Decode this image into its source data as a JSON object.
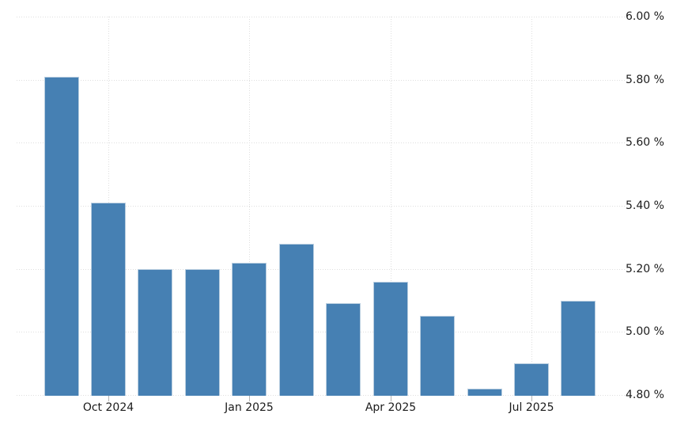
{
  "chart_data": {
    "type": "bar",
    "title": "",
    "xlabel": "",
    "ylabel": "",
    "unit": "%",
    "categories": [
      "Sep 2024",
      "Oct 2024",
      "Nov 2024",
      "Dec 2024",
      "Jan 2025",
      "Feb 2025",
      "Mar 2025",
      "Apr 2025",
      "May 2025",
      "Jun 2025",
      "Jul 2025",
      "Aug 2025"
    ],
    "values": [
      5.81,
      5.41,
      5.2,
      5.2,
      5.22,
      5.28,
      5.09,
      5.16,
      5.05,
      4.82,
      4.9,
      5.1
    ],
    "ylim": [
      4.8,
      6.0
    ],
    "y_ticks": [
      6.0,
      5.8,
      5.6,
      5.4,
      5.2,
      5.0,
      4.8
    ],
    "y_tick_labels": [
      "6.00 %",
      "5.80 %",
      "5.60 %",
      "5.40 %",
      "5.20 %",
      "5.00 %",
      "4.80 %"
    ],
    "x_ticks": [
      {
        "index": 1,
        "label": "Oct 2024"
      },
      {
        "index": 4,
        "label": "Jan 2025"
      },
      {
        "index": 7,
        "label": "Apr 2025"
      },
      {
        "index": 10,
        "label": "Jul 2025"
      }
    ],
    "grid": true,
    "legend": false
  },
  "style": {
    "background": "#ffffff",
    "bar_fill": "#4680b3",
    "bar_border": "#b9cee0",
    "grid_color": "#dedede",
    "tick_color": "#b5b5b5",
    "axis_label_color": "#1b1b1b"
  }
}
